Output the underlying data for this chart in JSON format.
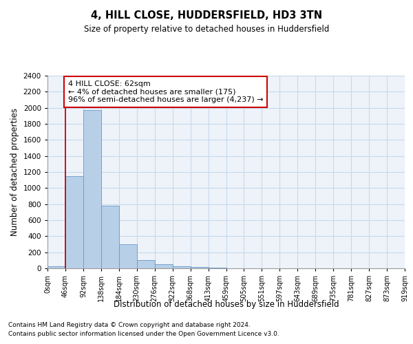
{
  "title": "4, HILL CLOSE, HUDDERSFIELD, HD3 3TN",
  "subtitle": "Size of property relative to detached houses in Huddersfield",
  "xlabel": "Distribution of detached houses by size in Huddersfield",
  "ylabel": "Number of detached properties",
  "footer1": "Contains HM Land Registry data © Crown copyright and database right 2024.",
  "footer2": "Contains public sector information licensed under the Open Government Licence v3.0.",
  "bar_values": [
    30,
    1150,
    1970,
    780,
    300,
    100,
    50,
    30,
    20,
    5,
    0,
    0,
    0,
    0,
    0,
    0,
    0,
    0,
    0,
    0
  ],
  "bar_color": "#b8cfe8",
  "bar_edge_color": "#6699cc",
  "grid_color": "#c8d8ec",
  "bg_color": "#eef3fa",
  "annotation_text": "4 HILL CLOSE: 62sqm\n← 4% of detached houses are smaller (175)\n96% of semi-detached houses are larger (4,237) →",
  "annotation_box_color": "#ffffff",
  "annotation_box_edge": "#cc0000",
  "red_line_x": 1,
  "ylim": [
    0,
    2400
  ],
  "yticks": [
    0,
    200,
    400,
    600,
    800,
    1000,
    1200,
    1400,
    1600,
    1800,
    2000,
    2200,
    2400
  ],
  "x_labels": [
    "0sqm",
    "46sqm",
    "92sqm",
    "138sqm",
    "184sqm",
    "230sqm",
    "276sqm",
    "322sqm",
    "368sqm",
    "413sqm",
    "459sqm",
    "505sqm",
    "551sqm",
    "597sqm",
    "643sqm",
    "689sqm",
    "735sqm",
    "781sqm",
    "827sqm",
    "873sqm",
    "919sqm"
  ],
  "figsize": [
    6.0,
    5.0
  ],
  "dpi": 100
}
